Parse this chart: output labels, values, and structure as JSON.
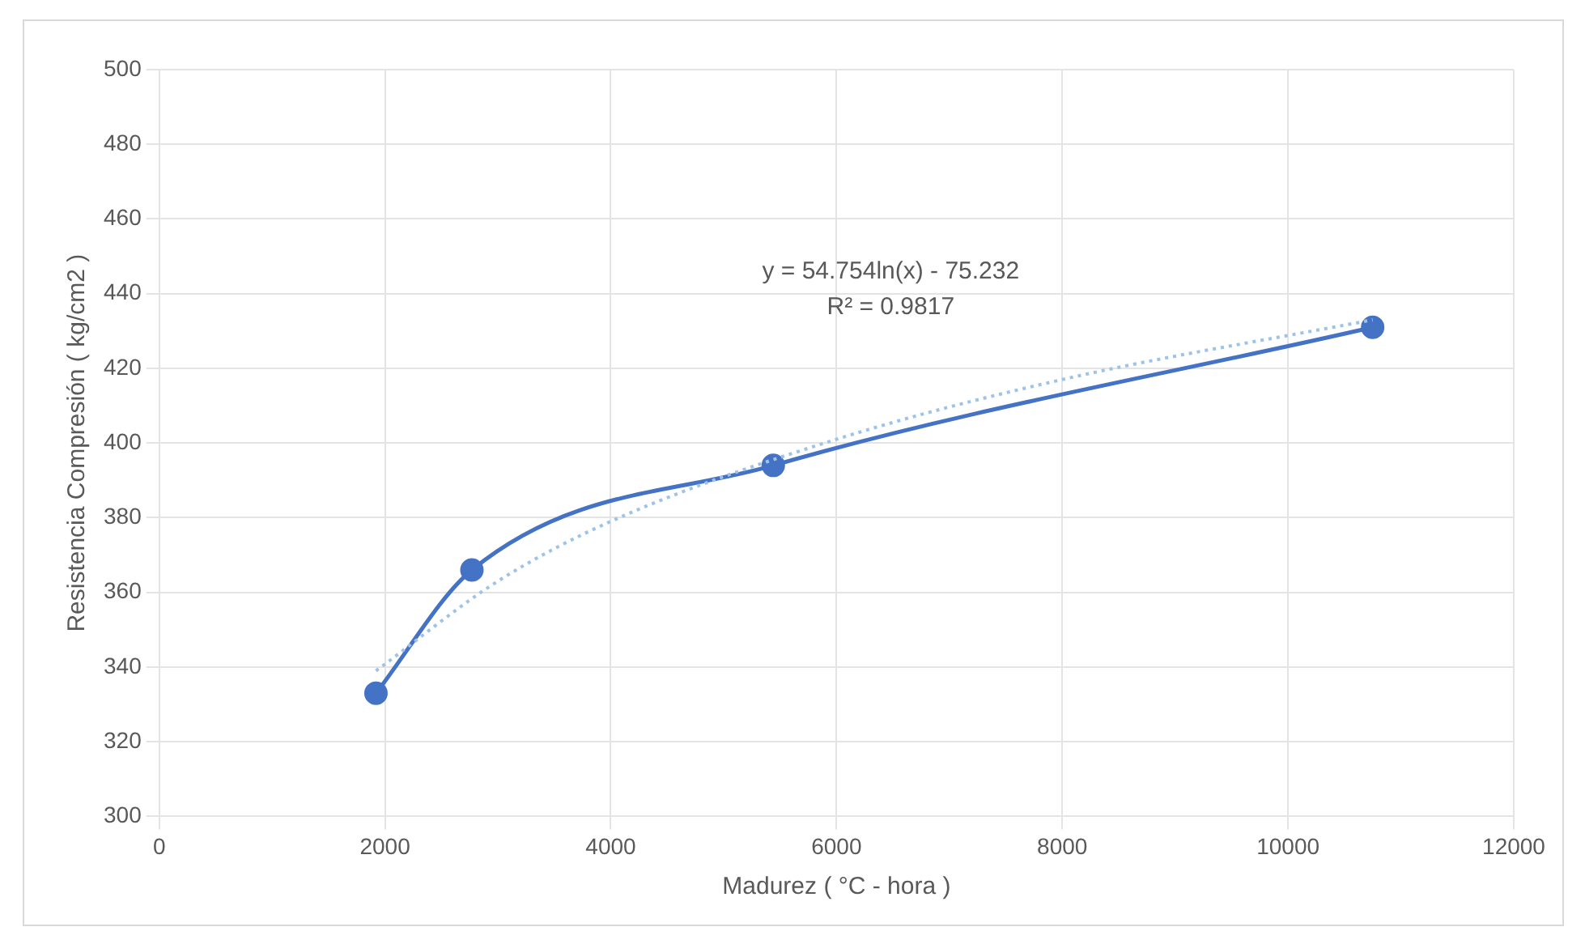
{
  "chart_data": {
    "type": "line",
    "xlabel": "Madurez ( °C - hora )",
    "ylabel": "Resistencia Compresión ( kg/cm2 )",
    "series": [
      {
        "color": "#4472c4",
        "x": [
          1920,
          2770,
          5440,
          10750
        ],
        "values": [
          333,
          366,
          394,
          431
        ],
        "marker": "circle",
        "line_style": "solid"
      },
      {
        "color": "#9dc3e6",
        "x": [
          1920,
          3000,
          4000,
          6000,
          8000,
          10750
        ],
        "values": [
          339,
          363,
          379,
          401,
          417,
          433
        ],
        "marker": "none",
        "line_style": "dotted"
      }
    ],
    "xlim": [
      0,
      12000
    ],
    "xticks": [
      0,
      2000,
      4000,
      6000,
      8000,
      10000,
      12000
    ],
    "ylim": [
      300,
      500
    ],
    "yticks": [
      300,
      320,
      340,
      360,
      380,
      400,
      420,
      440,
      460,
      480,
      500
    ],
    "grid": true,
    "legend": false,
    "annotations": [
      "y = 54.754ln(x) - 75.232",
      "R² = 0.9817"
    ]
  }
}
